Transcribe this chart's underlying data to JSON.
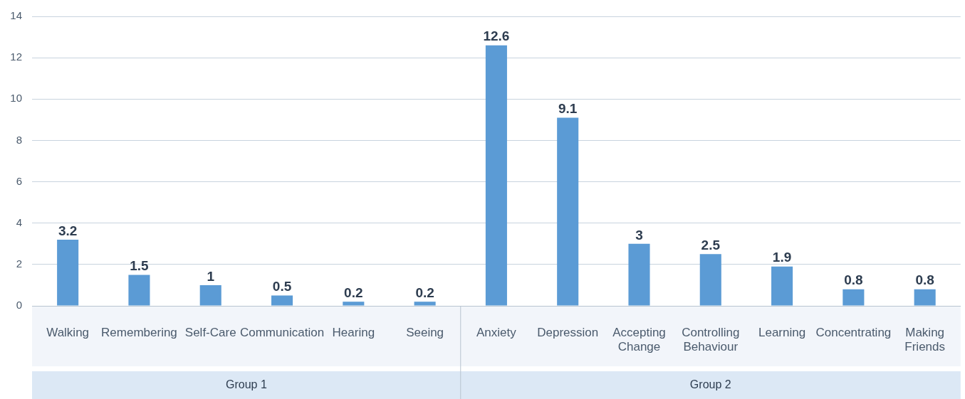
{
  "chart_data": {
    "type": "bar",
    "categories": [
      "Walking",
      "Remembering",
      "Self-Care",
      "Communication",
      "Hearing",
      "Seeing",
      "Anxiety",
      "Depression",
      "Accepting Change",
      "Controlling Behaviour",
      "Learning",
      "Concentrating",
      "Making Friends"
    ],
    "values": [
      3.2,
      1.5,
      1,
      0.5,
      0.2,
      0.2,
      12.6,
      9.1,
      3,
      2.5,
      1.9,
      0.8,
      0.8
    ],
    "color": "#5b9bd5",
    "ylim": [
      0,
      14
    ],
    "yticks": [
      0,
      2,
      4,
      6,
      8,
      10,
      12,
      14
    ],
    "grid": "y",
    "legend": false,
    "data_labels": true,
    "annotations": [
      "Group 1",
      "Group 2"
    ]
  }
}
